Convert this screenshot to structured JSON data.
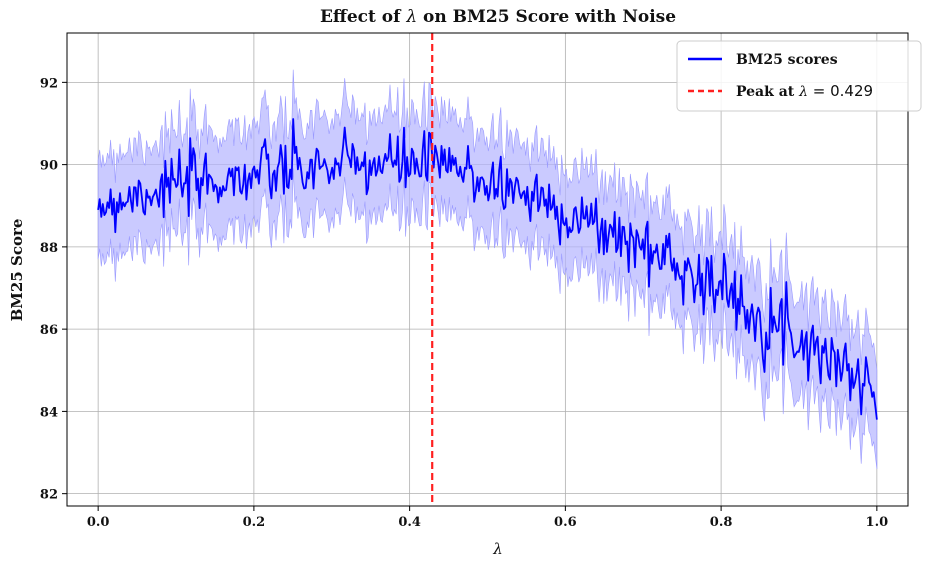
{
  "chart_data": {
    "type": "line",
    "title": "Effect of λ on BM25 Score with Noise",
    "title_parts": {
      "prefix": "Effect of ",
      "symbol": "λ",
      "suffix": " on BM25 Score with Noise"
    },
    "xlabel": "λ",
    "ylabel": "BM25 Score",
    "xlim": [
      -0.04,
      1.04
    ],
    "ylim": [
      81.7,
      93.2
    ],
    "x_ticks": [
      0.0,
      0.2,
      0.4,
      0.6,
      0.8,
      1.0
    ],
    "x_tick_labels": [
      "0.0",
      "0.2",
      "0.4",
      "0.6",
      "0.8",
      "1.0"
    ],
    "y_ticks": [
      82,
      84,
      86,
      88,
      90,
      92
    ],
    "y_tick_labels": [
      "82",
      "84",
      "86",
      "88",
      "90",
      "92"
    ],
    "grid": true,
    "legend_position": "top-right",
    "series": [
      {
        "name": "BM25 scores",
        "color": "#0000ff",
        "band_color": "#b4b4ff",
        "band_halfwidth": 1.2,
        "noise_sd": 0.38,
        "x": [
          0.0,
          0.05,
          0.1,
          0.15,
          0.2,
          0.25,
          0.3,
          0.35,
          0.4,
          0.429,
          0.45,
          0.5,
          0.55,
          0.6,
          0.65,
          0.7,
          0.75,
          0.8,
          0.85,
          0.9,
          0.95,
          1.0
        ],
        "y": [
          89.0,
          89.3,
          89.5,
          89.6,
          89.75,
          89.85,
          89.95,
          90.0,
          90.02,
          90.05,
          89.95,
          89.6,
          89.3,
          88.85,
          88.4,
          88.0,
          87.55,
          86.95,
          86.35,
          85.8,
          85.2,
          84.4
        ]
      }
    ],
    "reference_lines": [
      {
        "name": "Peak at λ = 0.429",
        "x": 0.429,
        "color": "#ff2020",
        "style": "dashed"
      }
    ],
    "legend": [
      {
        "label": "BM25 scores",
        "color": "#0000ff",
        "style": "solid"
      },
      {
        "label_prefix": "Peak at ",
        "symbol": "λ",
        "math": " = 0.429",
        "color": "#ff2020",
        "style": "dashed"
      }
    ]
  }
}
